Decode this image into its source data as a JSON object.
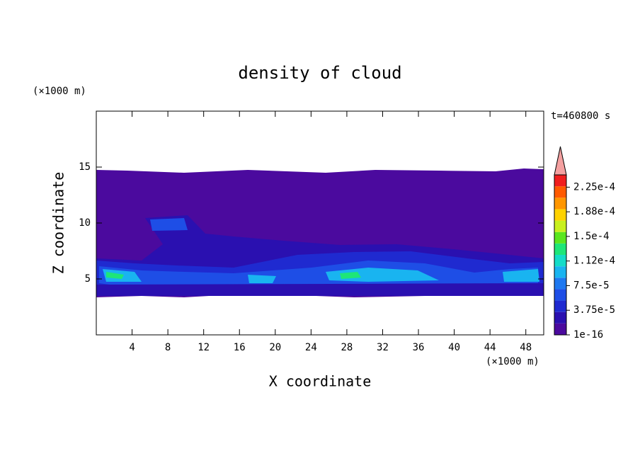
{
  "chart_data": {
    "type": "contour",
    "title": "density of cloud",
    "xlabel": "X coordinate",
    "ylabel": "Z coordinate",
    "xunit": "(×1000 m)",
    "yunit": "(×1000 m)",
    "time_label": "t=460800 s",
    "xlim": [
      0,
      50
    ],
    "xticks": [
      4,
      8,
      12,
      16,
      20,
      24,
      28,
      32,
      36,
      40,
      44,
      48
    ],
    "ylim": [
      0,
      20
    ],
    "yticks": [
      5,
      10,
      15
    ],
    "clim": [
      0,
      0.00024375
    ],
    "colorbar_ticks": [
      {
        "value": 1e-16,
        "label": "1e-16"
      },
      {
        "value": 3.75e-05,
        "label": "3.75e-5"
      },
      {
        "value": 7.5e-05,
        "label": "7.5e-5"
      },
      {
        "value": 0.0001125,
        "label": "1.12e-4"
      },
      {
        "value": 0.00015,
        "label": "1.5e-4"
      },
      {
        "value": 0.0001875,
        "label": "1.88e-4"
      },
      {
        "value": 0.000225,
        "label": "2.25e-4"
      }
    ],
    "colorbar_colors": [
      "#4b0a9e",
      "#2a10b0",
      "#1f2ad0",
      "#1e4ee6",
      "#1e78f0",
      "#19b4f0",
      "#14dcc8",
      "#1ee678",
      "#5ae61e",
      "#c8f01e",
      "#ffd200",
      "#ff9600",
      "#ff5a00",
      "#f01e1e"
    ],
    "extend_color": "#f4a0a0"
  }
}
